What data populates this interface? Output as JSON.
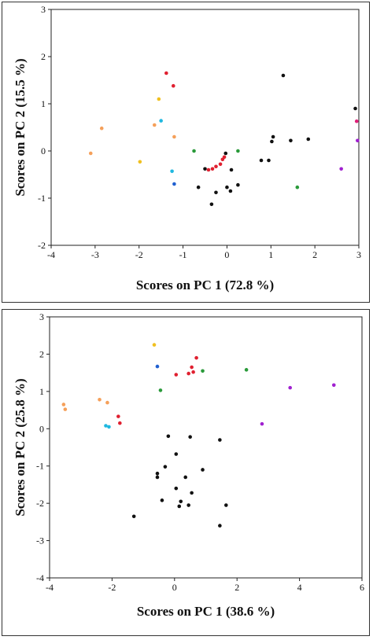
{
  "chart_data": [
    {
      "type": "scatter",
      "title": "",
      "xlabel": "Scores on PC 1 (72.8 %)",
      "ylabel": "Scores on PC 2 (15.5 %)",
      "xlim": [
        -4,
        3
      ],
      "ylim": [
        -2,
        3
      ],
      "xticks": [
        "-4",
        "-3",
        "-2",
        "-1",
        "0",
        "1",
        "2",
        "3"
      ],
      "yticks": [
        "-2",
        "-1",
        "0",
        "1",
        "2",
        "3"
      ],
      "grid": false,
      "legend": "none",
      "points": [
        {
          "x": -3.1,
          "y": -0.05,
          "color": "#f5a05a"
        },
        {
          "x": -2.85,
          "y": 0.48,
          "color": "#f5a05a"
        },
        {
          "x": -1.98,
          "y": -0.23,
          "color": "#f0c020"
        },
        {
          "x": -1.65,
          "y": 0.55,
          "color": "#f5a05a"
        },
        {
          "x": -1.55,
          "y": 1.1,
          "color": "#f0c020"
        },
        {
          "x": -1.5,
          "y": 0.64,
          "color": "#20b8e0"
        },
        {
          "x": -1.38,
          "y": 1.65,
          "color": "#e02030"
        },
        {
          "x": -1.22,
          "y": 1.38,
          "color": "#e02030"
        },
        {
          "x": -1.2,
          "y": 0.3,
          "color": "#f5a05a"
        },
        {
          "x": -1.25,
          "y": -0.43,
          "color": "#20b8e0"
        },
        {
          "x": -1.2,
          "y": -0.7,
          "color": "#2060d0"
        },
        {
          "x": -0.75,
          "y": 0.0,
          "color": "#2a9a3a"
        },
        {
          "x": -0.65,
          "y": -0.77,
          "color": "#111111"
        },
        {
          "x": -0.5,
          "y": -0.38,
          "color": "#111111"
        },
        {
          "x": -0.42,
          "y": -0.4,
          "color": "#e02030"
        },
        {
          "x": -0.33,
          "y": -0.38,
          "color": "#e02030"
        },
        {
          "x": -0.25,
          "y": -0.33,
          "color": "#e02030"
        },
        {
          "x": -0.15,
          "y": -0.28,
          "color": "#e02030"
        },
        {
          "x": -0.1,
          "y": -0.18,
          "color": "#e02030"
        },
        {
          "x": -0.06,
          "y": -0.13,
          "color": "#e02030"
        },
        {
          "x": -0.03,
          "y": -0.05,
          "color": "#111111"
        },
        {
          "x": -0.35,
          "y": -1.13,
          "color": "#111111"
        },
        {
          "x": -0.25,
          "y": -0.88,
          "color": "#111111"
        },
        {
          "x": 0.0,
          "y": -0.77,
          "color": "#111111"
        },
        {
          "x": 0.08,
          "y": -0.85,
          "color": "#111111"
        },
        {
          "x": 0.1,
          "y": -0.4,
          "color": "#111111"
        },
        {
          "x": 0.25,
          "y": -0.72,
          "color": "#111111"
        },
        {
          "x": 0.25,
          "y": 0.0,
          "color": "#2a9a3a"
        },
        {
          "x": 0.78,
          "y": -0.2,
          "color": "#111111"
        },
        {
          "x": 0.95,
          "y": -0.2,
          "color": "#111111"
        },
        {
          "x": 1.02,
          "y": 0.2,
          "color": "#111111"
        },
        {
          "x": 1.05,
          "y": 0.3,
          "color": "#111111"
        },
        {
          "x": 1.28,
          "y": 1.6,
          "color": "#111111"
        },
        {
          "x": 1.45,
          "y": 0.22,
          "color": "#111111"
        },
        {
          "x": 1.6,
          "y": -0.77,
          "color": "#2a9a3a"
        },
        {
          "x": 1.85,
          "y": 0.25,
          "color": "#111111"
        },
        {
          "x": 2.6,
          "y": -0.38,
          "color": "#a020d0"
        },
        {
          "x": 2.92,
          "y": 0.9,
          "color": "#111111"
        },
        {
          "x": 2.95,
          "y": 0.63,
          "color": "#e0207a"
        },
        {
          "x": 2.97,
          "y": 0.22,
          "color": "#a020d0"
        }
      ]
    },
    {
      "type": "scatter",
      "title": "",
      "xlabel": "Scores on PC 1 (38.6 %)",
      "ylabel": "Scores on PC 2 (25.8 %)",
      "xlim": [
        -4,
        6
      ],
      "ylim": [
        -4,
        3
      ],
      "xticks": [
        "-4",
        "-2",
        "0",
        "2",
        "4",
        "6"
      ],
      "yticks": [
        "-4",
        "-3",
        "-2",
        "-1",
        "0",
        "1",
        "2",
        "3"
      ],
      "grid": false,
      "legend": "none",
      "points": [
        {
          "x": -3.55,
          "y": 0.65,
          "color": "#f5a05a"
        },
        {
          "x": -3.5,
          "y": 0.52,
          "color": "#f5a05a"
        },
        {
          "x": -2.4,
          "y": 0.78,
          "color": "#f5a05a"
        },
        {
          "x": -2.15,
          "y": 0.7,
          "color": "#f5a05a"
        },
        {
          "x": -2.2,
          "y": 0.08,
          "color": "#20b8e0"
        },
        {
          "x": -2.1,
          "y": 0.05,
          "color": "#20b8e0"
        },
        {
          "x": -1.8,
          "y": 0.33,
          "color": "#e02030"
        },
        {
          "x": -1.75,
          "y": 0.15,
          "color": "#e02030"
        },
        {
          "x": -0.65,
          "y": 2.25,
          "color": "#f0c020"
        },
        {
          "x": -0.55,
          "y": 1.67,
          "color": "#2060d0"
        },
        {
          "x": -0.45,
          "y": 1.03,
          "color": "#2a9a3a"
        },
        {
          "x": 0.05,
          "y": 1.45,
          "color": "#e02030"
        },
        {
          "x": 0.45,
          "y": 1.48,
          "color": "#e02030"
        },
        {
          "x": 0.55,
          "y": 1.65,
          "color": "#e02030"
        },
        {
          "x": 0.6,
          "y": 1.52,
          "color": "#e02030"
        },
        {
          "x": 0.7,
          "y": 1.9,
          "color": "#e02030"
        },
        {
          "x": 0.9,
          "y": 1.55,
          "color": "#2a9a3a"
        },
        {
          "x": 2.3,
          "y": 1.58,
          "color": "#2a9a3a"
        },
        {
          "x": 2.8,
          "y": 0.13,
          "color": "#a020d0"
        },
        {
          "x": 3.7,
          "y": 1.1,
          "color": "#a020d0"
        },
        {
          "x": 5.1,
          "y": 1.17,
          "color": "#a020d0"
        },
        {
          "x": -0.2,
          "y": -0.2,
          "color": "#111111"
        },
        {
          "x": 0.5,
          "y": -0.22,
          "color": "#111111"
        },
        {
          "x": 1.45,
          "y": -0.3,
          "color": "#111111"
        },
        {
          "x": 0.05,
          "y": -0.68,
          "color": "#111111"
        },
        {
          "x": -0.3,
          "y": -1.02,
          "color": "#111111"
        },
        {
          "x": 0.9,
          "y": -1.1,
          "color": "#111111"
        },
        {
          "x": -0.55,
          "y": -1.2,
          "color": "#111111"
        },
        {
          "x": -0.55,
          "y": -1.3,
          "color": "#111111"
        },
        {
          "x": 0.35,
          "y": -1.3,
          "color": "#111111"
        },
        {
          "x": 0.05,
          "y": -1.6,
          "color": "#111111"
        },
        {
          "x": 0.55,
          "y": -1.72,
          "color": "#111111"
        },
        {
          "x": -0.4,
          "y": -1.92,
          "color": "#111111"
        },
        {
          "x": 0.2,
          "y": -1.95,
          "color": "#111111"
        },
        {
          "x": 0.15,
          "y": -2.08,
          "color": "#111111"
        },
        {
          "x": 0.45,
          "y": -2.05,
          "color": "#111111"
        },
        {
          "x": 1.65,
          "y": -2.05,
          "color": "#111111"
        },
        {
          "x": -1.3,
          "y": -2.35,
          "color": "#111111"
        },
        {
          "x": 1.45,
          "y": -2.6,
          "color": "#111111"
        }
      ]
    }
  ]
}
